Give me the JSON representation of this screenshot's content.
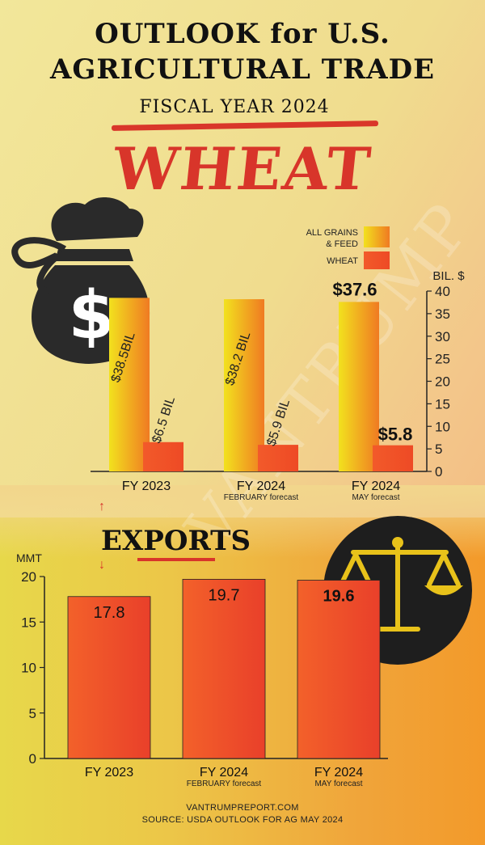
{
  "header": {
    "title_line1": "OUTLOOK for U.S.",
    "title_line2": "AGRICULTURAL TRADE",
    "fiscal_year": "FISCAL YEAR 2024",
    "commodity": "WHEAT"
  },
  "watermark": "VANTRUMP",
  "footer": {
    "line1": "VANTRUMPREPORT.COM",
    "line2": "SOURCE: USDA OUTLOOK FOR AG MAY 2024"
  },
  "colors": {
    "grains_top": "#f2e11e",
    "grains_bottom": "#f07a22",
    "wheat": "#ee4a25",
    "accent_red": "#d8352a",
    "icon_dark": "#2a2a2a",
    "scale_gold": "#e8c21a"
  },
  "icons": [
    "money-bag-icon",
    "dollar-sign-icon",
    "balance-scale-icon",
    "arrow-up-icon",
    "arrow-down-icon"
  ],
  "chart_data": [
    {
      "type": "bar",
      "title": "",
      "ylabel": "BIL. $",
      "ylim": [
        0,
        40
      ],
      "yticks": [
        0,
        5,
        10,
        15,
        20,
        25,
        30,
        35,
        40
      ],
      "categories": [
        "FY 2023",
        "FY 2024",
        "FY 2024"
      ],
      "category_sublabels": [
        "",
        "FEBRUARY forecast",
        "MAY forecast"
      ],
      "legend_position": "top-right",
      "series": [
        {
          "name": "ALL GRAINS & FEED",
          "values": [
            38.5,
            38.2,
            37.6
          ],
          "labels": [
            "$38.5BIL",
            "$38.2 BIL",
            "$37.6"
          ]
        },
        {
          "name": "WHEAT",
          "values": [
            6.5,
            5.9,
            5.8
          ],
          "labels": [
            "$6.5 BIL",
            "$5.9 BIL",
            "$5.8"
          ]
        }
      ]
    },
    {
      "type": "bar",
      "title": "EXPORTS",
      "ylabel": "MMT",
      "ylim": [
        0,
        20
      ],
      "yticks": [
        0,
        5,
        10,
        15,
        20
      ],
      "categories": [
        "FY 2023",
        "FY 2024",
        "FY 2024"
      ],
      "category_sublabels": [
        "",
        "FEBRUARY forecast",
        "MAY forecast"
      ],
      "values": [
        17.8,
        19.7,
        19.6
      ],
      "labels": [
        "17.8",
        "19.7",
        "19.6"
      ]
    }
  ]
}
